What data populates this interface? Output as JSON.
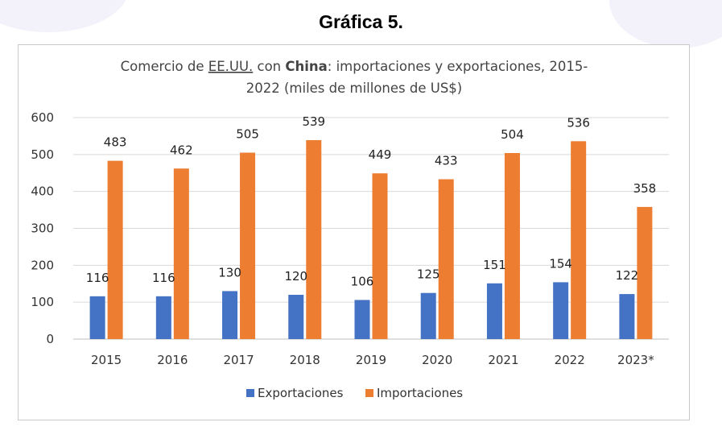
{
  "page": {
    "heading": "Gráfica 5."
  },
  "chart_data": {
    "type": "bar",
    "title_line1": {
      "pre": "Comercio de ",
      "link": "EE.UU.",
      "mid": " con ",
      "bold": "China",
      "post": ": importaciones y exportaciones, 2015-"
    },
    "title_line2": "2022 (miles de millones de US$)",
    "categories": [
      "2015",
      "2016",
      "2017",
      "2018",
      "2019",
      "2020",
      "2021",
      "2022",
      "2023*"
    ],
    "series": [
      {
        "name": "Exportaciones",
        "color": "#4472c4",
        "values": [
          116,
          116,
          130,
          120,
          106,
          125,
          151,
          154,
          122
        ]
      },
      {
        "name": "Importaciones",
        "color": "#ed7d31",
        "values": [
          483,
          462,
          505,
          539,
          449,
          433,
          504,
          536,
          358
        ]
      }
    ],
    "ylim": [
      0,
      600
    ],
    "yticks": [
      0,
      100,
      200,
      300,
      400,
      500,
      600
    ],
    "grid": true,
    "legend": "bottom"
  }
}
